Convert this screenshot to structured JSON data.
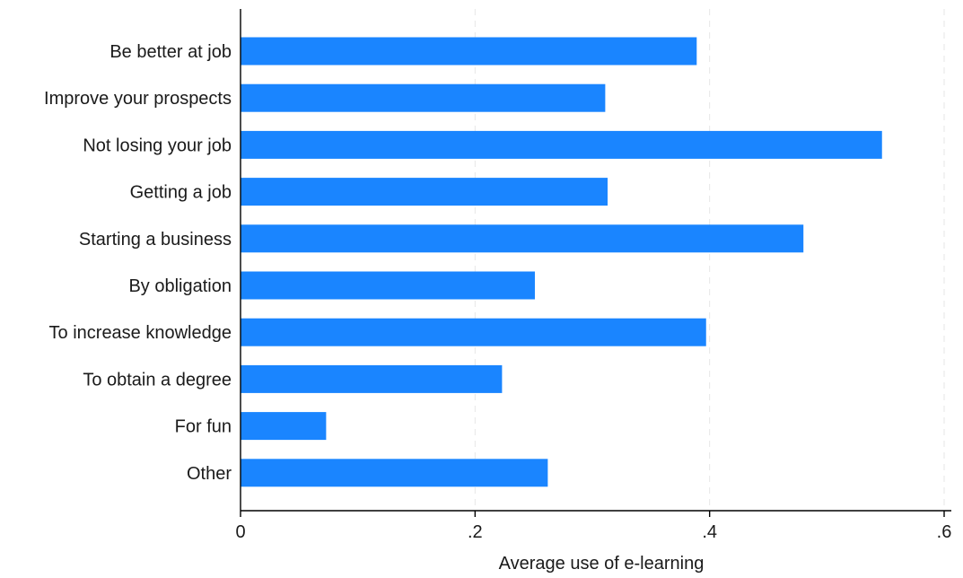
{
  "chart_data": {
    "type": "bar",
    "orientation": "horizontal",
    "categories": [
      "Be better at job",
      "Improve your prospects",
      "Not losing your job",
      "Getting a job",
      "Starting a business",
      "By obligation",
      "To increase knowledge",
      "To obtain a degree",
      "For fun",
      "Other"
    ],
    "values": [
      0.389,
      0.311,
      0.547,
      0.313,
      0.48,
      0.251,
      0.397,
      0.223,
      0.073,
      0.262
    ],
    "xlabel": "Average use of e-learning",
    "ylabel": "",
    "xlim": [
      0,
      0.6
    ],
    "xticks": [
      {
        "value": 0,
        "label": "0"
      },
      {
        "value": 0.2,
        "label": ".2"
      },
      {
        "value": 0.4,
        "label": ".4"
      },
      {
        "value": 0.6,
        "label": ".6"
      }
    ],
    "grid": true,
    "bar_color": "#1a85ff"
  }
}
